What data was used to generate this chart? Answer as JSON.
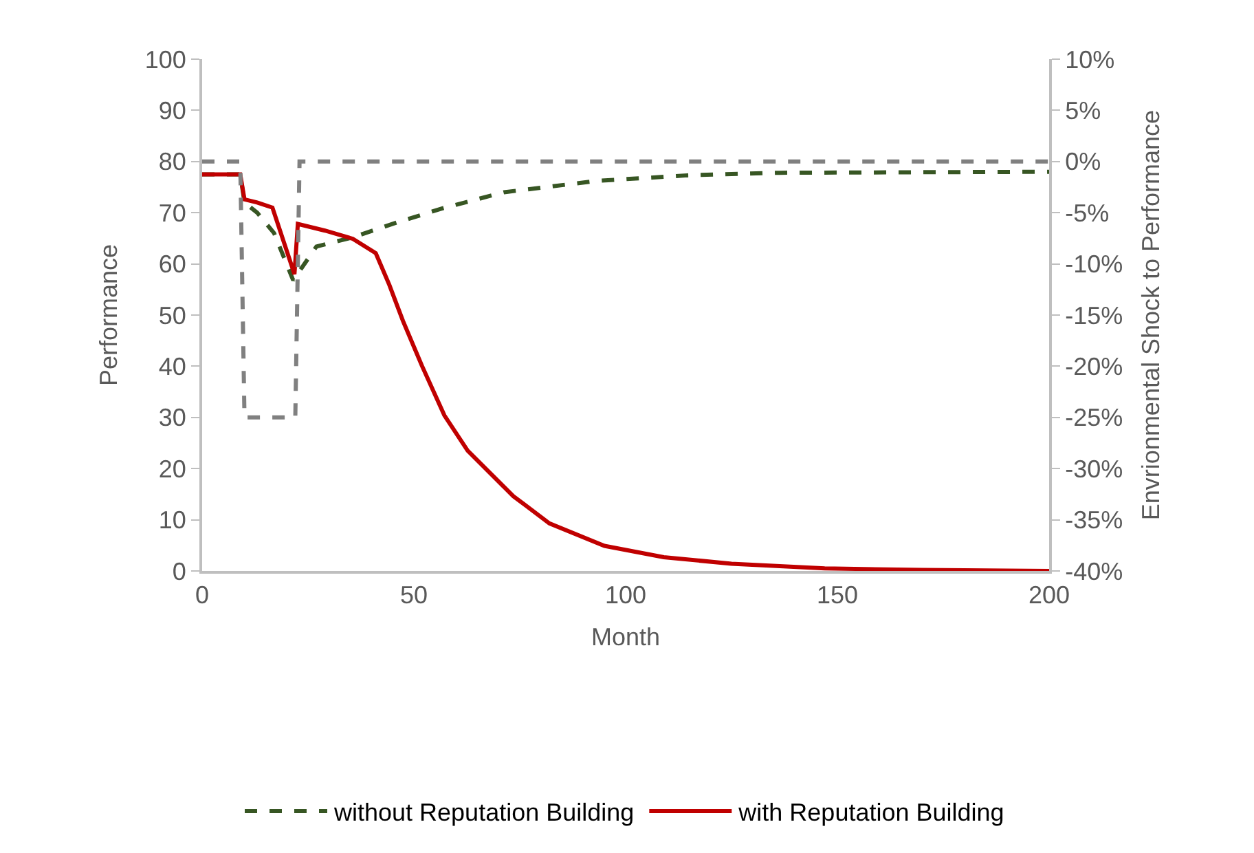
{
  "chart_data": {
    "type": "line",
    "xlabel": "Month",
    "ylabel": "Performance",
    "y2label": "Envrionmental Shock to Performance",
    "xlim": [
      0,
      200
    ],
    "xticks": [
      0,
      50,
      100,
      150,
      200
    ],
    "ylim": [
      0,
      100
    ],
    "yticks": [
      0,
      10,
      20,
      30,
      40,
      50,
      60,
      70,
      80,
      90,
      100
    ],
    "y2lim": [
      -40,
      10
    ],
    "y2ticks": [
      {
        "value": -40,
        "label": "-40%"
      },
      {
        "value": -35,
        "label": "-35%"
      },
      {
        "value": -30,
        "label": "-30%"
      },
      {
        "value": -25,
        "label": "-25%"
      },
      {
        "value": -20,
        "label": "-20%"
      },
      {
        "value": -15,
        "label": "-15%"
      },
      {
        "value": -10,
        "label": "-10%"
      },
      {
        "value": -5,
        "label": "-5%"
      },
      {
        "value": 0,
        "label": "0%"
      },
      {
        "value": 5,
        "label": "5%"
      },
      {
        "value": 10,
        "label": "10%"
      }
    ],
    "legend": "bottom",
    "marker": "none",
    "series": [
      {
        "name": "without Reputation Building",
        "color": "#375623",
        "line_style": "dashed",
        "x": [
          0,
          9,
          10,
          13,
          17,
          21.5,
          27,
          35.6,
          46.4,
          57,
          71.3,
          93,
          114.6,
          136.3,
          200
        ],
        "values": [
          77.5,
          77.5,
          72,
          70,
          66,
          56.8,
          63.4,
          65.2,
          68.2,
          70.9,
          74,
          76.2,
          77.3,
          77.8,
          78
        ]
      },
      {
        "name": "with Reputation Building",
        "color": "#c00000",
        "line_style": "solid",
        "x": [
          0,
          9,
          10,
          13,
          16.6,
          21.8,
          22.6,
          29,
          35.6,
          41,
          44.2,
          47.4,
          51.9,
          57.2,
          62.7,
          73.5,
          82,
          95,
          109,
          125,
          147,
          170,
          200
        ],
        "values": [
          77.5,
          77.5,
          72.6,
          72,
          71,
          58,
          67.8,
          66.5,
          64.9,
          62.1,
          55.9,
          48.9,
          40.1,
          30.4,
          23.5,
          14.6,
          9.3,
          4.9,
          2.7,
          1.4,
          0.5,
          0.2,
          0
        ]
      },
      {
        "color": "#808080",
        "line_style": "dashed",
        "axis": "y2",
        "x": [
          0,
          9,
          10,
          22,
          23,
          200
        ],
        "values": [
          0,
          0,
          -25,
          -25,
          0,
          0
        ]
      }
    ]
  }
}
